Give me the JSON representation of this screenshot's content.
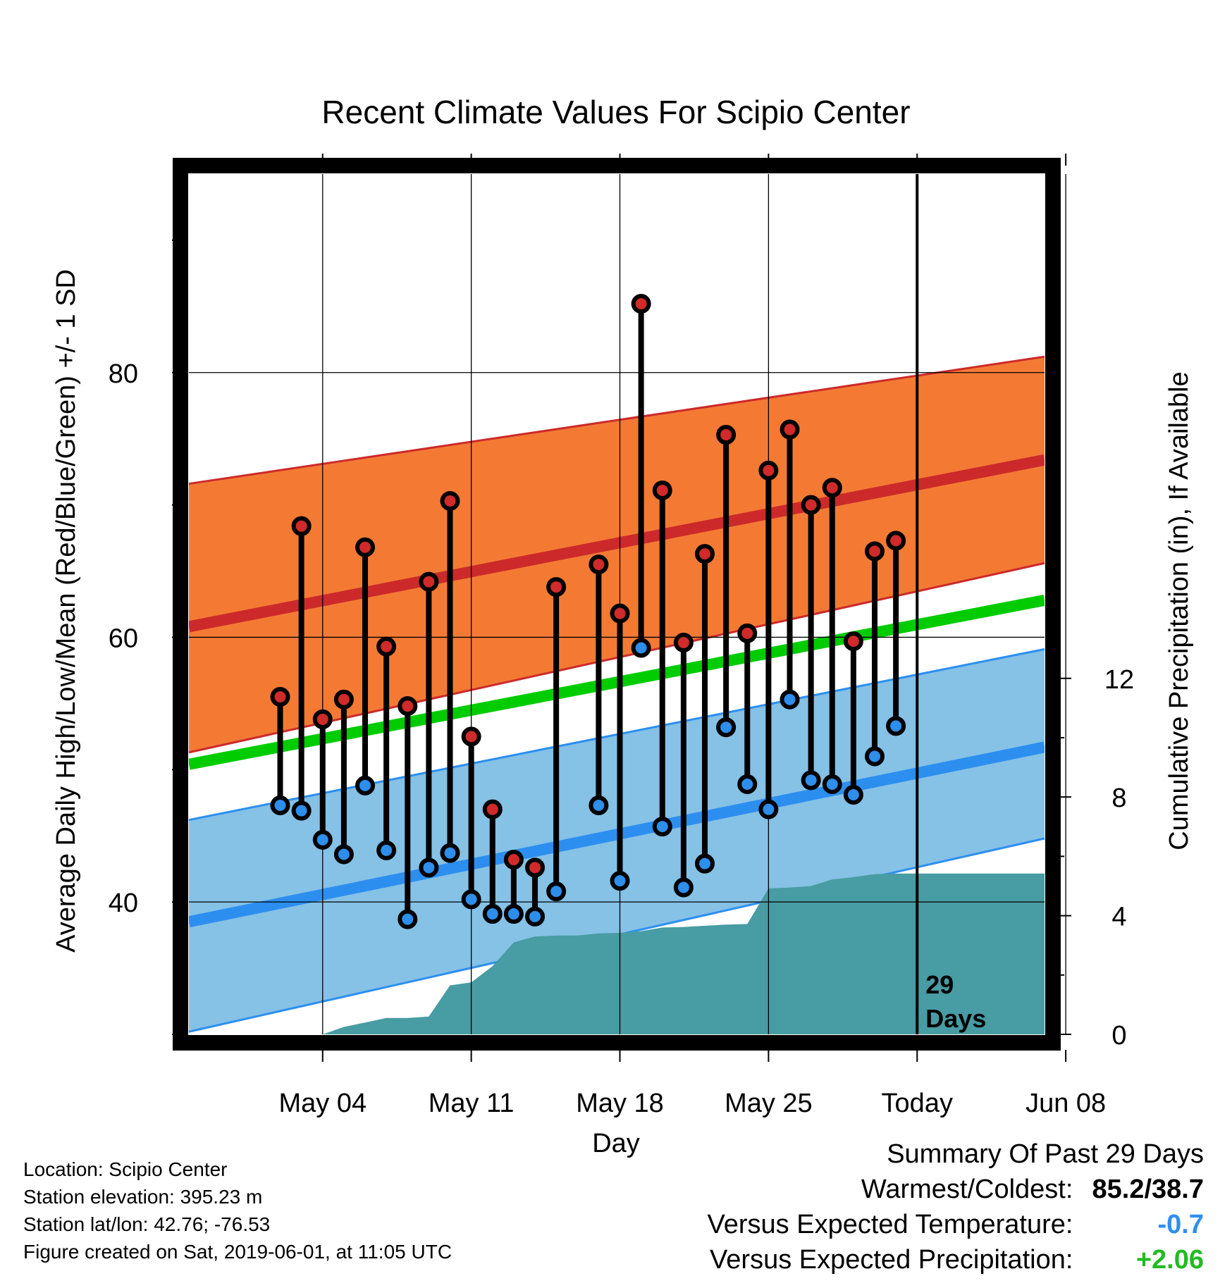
{
  "chart_data": {
    "type": "climate-range",
    "title": "Recent Climate Values For Scipio Center",
    "xlabel": "Day",
    "ylabel_left": "Average Daily High/Low/Mean (Red/Blue/Green) +/- 1 SD",
    "ylabel_right": "Cumulative Precipitation (in), If Available",
    "x_range_days": [
      -3.3,
      37
    ],
    "x_day_note": "day 0 = May 01",
    "x_ticks": [
      {
        "day": 3,
        "label": "May 04"
      },
      {
        "day": 10,
        "label": "May 11"
      },
      {
        "day": 17,
        "label": "May 18"
      },
      {
        "day": 24,
        "label": "May 25"
      },
      {
        "day": 31,
        "label": "Today"
      },
      {
        "day": 38,
        "label": "Jun 08"
      }
    ],
    "y_range_temp": [
      30,
      95
    ],
    "y_ticks_temp": [
      80,
      60,
      40
    ],
    "y_range_precip": [
      0,
      29
    ],
    "y_ticks_precip": [
      12,
      8,
      4,
      0
    ],
    "today_day": 31,
    "today_annotation": [
      "29",
      "Days"
    ],
    "normal_high": {
      "start": 60.8,
      "end": 73.4
    },
    "normal_high_band": {
      "lower_start": 51.3,
      "lower_end": 65.6,
      "upper_start": 71.6,
      "upper_end": 81.2
    },
    "normal_mean": {
      "start": 50.4,
      "end": 62.8
    },
    "normal_low": {
      "start": 38.5,
      "end": 51.7
    },
    "normal_low_band": {
      "lower_start": 30.2,
      "lower_end": 44.8,
      "upper_start": 46.2,
      "upper_end": 59.1
    },
    "daily": [
      {
        "day": 1,
        "high": 55.5,
        "low": 47.3
      },
      {
        "day": 2,
        "high": 68.4,
        "low": 46.9
      },
      {
        "day": 3,
        "high": 53.8,
        "low": 44.7
      },
      {
        "day": 4,
        "high": 55.3,
        "low": 43.6
      },
      {
        "day": 5,
        "high": 66.8,
        "low": 48.8
      },
      {
        "day": 6,
        "high": 59.3,
        "low": 43.9
      },
      {
        "day": 7,
        "high": 54.8,
        "low": 38.7
      },
      {
        "day": 8,
        "high": 64.2,
        "low": 42.6
      },
      {
        "day": 9,
        "high": 70.3,
        "low": 43.7
      },
      {
        "day": 10,
        "high": 52.5,
        "low": 40.2
      },
      {
        "day": 11,
        "high": 47.0,
        "low": 39.1
      },
      {
        "day": 12,
        "high": 43.2,
        "low": 39.1
      },
      {
        "day": 13,
        "high": 42.6,
        "low": 38.9
      },
      {
        "day": 14,
        "high": 63.8,
        "low": 40.8
      },
      {
        "day": 16,
        "high": 65.5,
        "low": 47.3
      },
      {
        "day": 17,
        "high": 61.8,
        "low": 41.6
      },
      {
        "day": 18,
        "high": 85.2,
        "low": 59.2
      },
      {
        "day": 19,
        "high": 71.1,
        "low": 45.7
      },
      {
        "day": 20,
        "high": 59.6,
        "low": 41.1
      },
      {
        "day": 21,
        "high": 66.3,
        "low": 42.9
      },
      {
        "day": 22,
        "high": 75.3,
        "low": 53.2
      },
      {
        "day": 23,
        "high": 60.3,
        "low": 48.9
      },
      {
        "day": 24,
        "high": 72.6,
        "low": 47.0
      },
      {
        "day": 25,
        "high": 75.7,
        "low": 55.3
      },
      {
        "day": 26,
        "high": 70.0,
        "low": 49.2
      },
      {
        "day": 27,
        "high": 71.3,
        "low": 48.9
      },
      {
        "day": 28,
        "high": 59.7,
        "low": 48.1
      },
      {
        "day": 29,
        "high": 66.5,
        "low": 51.0
      },
      {
        "day": 30,
        "high": 67.3,
        "low": 53.3
      }
    ],
    "cumulative_precip": [
      {
        "day": 3,
        "value": 0.0
      },
      {
        "day": 4,
        "value": 0.25
      },
      {
        "day": 5,
        "value": 0.4
      },
      {
        "day": 6,
        "value": 0.55
      },
      {
        "day": 7,
        "value": 0.55
      },
      {
        "day": 8,
        "value": 0.6
      },
      {
        "day": 9,
        "value": 1.65
      },
      {
        "day": 10,
        "value": 1.75
      },
      {
        "day": 11,
        "value": 2.3
      },
      {
        "day": 12,
        "value": 3.1
      },
      {
        "day": 13,
        "value": 3.3
      },
      {
        "day": 14,
        "value": 3.33
      },
      {
        "day": 15,
        "value": 3.33
      },
      {
        "day": 16,
        "value": 3.4
      },
      {
        "day": 17,
        "value": 3.42
      },
      {
        "day": 18,
        "value": 3.48
      },
      {
        "day": 19,
        "value": 3.6
      },
      {
        "day": 20,
        "value": 3.62
      },
      {
        "day": 21,
        "value": 3.66
      },
      {
        "day": 22,
        "value": 3.7
      },
      {
        "day": 23,
        "value": 3.72
      },
      {
        "day": 24,
        "value": 4.92
      },
      {
        "day": 25,
        "value": 4.95
      },
      {
        "day": 26,
        "value": 5.0
      },
      {
        "day": 27,
        "value": 5.22
      },
      {
        "day": 28,
        "value": 5.3
      },
      {
        "day": 29,
        "value": 5.4
      },
      {
        "day": 30,
        "value": 5.42
      },
      {
        "day": 37,
        "value": 5.42
      }
    ],
    "colors": {
      "high_band": "#F47A34",
      "high_line": "#CC2A2A",
      "mean_line": "#00CC00",
      "low_band": "#86C1E6",
      "low_line": "#2C8FF0",
      "low_band_edge": "#2C8FF0",
      "precip_fill": "#489CA3",
      "high_point": "#D02A2A",
      "low_point": "#2D8EEB"
    }
  },
  "info": {
    "location": "Location: Scipio Center",
    "elevation": "Station elevation: 395.23 m",
    "latlon": "Station lat/lon: 42.76; -76.53",
    "created": "Figure created on Sat, 2019-06-01, at 11:05 UTC"
  },
  "summary": {
    "heading": "Summary Of Past 29 Days",
    "warm_cold_label": "Warmest/Coldest:",
    "warm_cold_value": "85.2/38.7",
    "temp_label": "Versus Expected Temperature:",
    "temp_value": "-0.7",
    "temp_color": "#2C8FF0",
    "precip_label": "Versus Expected Precipitation:",
    "precip_value": "+2.06",
    "precip_color": "#22BB22"
  }
}
